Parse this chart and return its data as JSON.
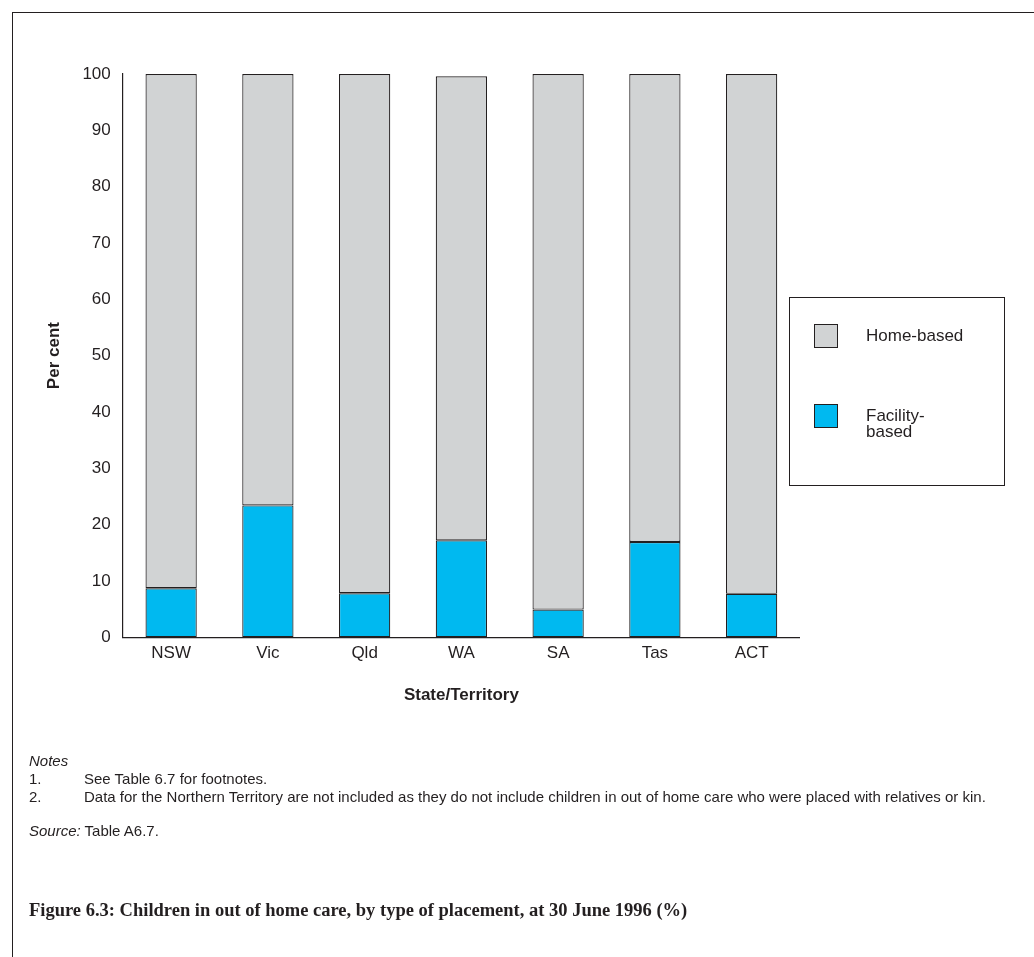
{
  "chart_data": {
    "type": "bar",
    "stacked": true,
    "title": "Figure 6.3: Children in out of home care, by type of placement, at 30 June 1996 (%)",
    "xlabel": "State/Territory",
    "ylabel": "Per cent",
    "categories": [
      "NSW",
      "Vic",
      "Qld",
      "WA",
      "SA",
      "Tas",
      "ACT"
    ],
    "series": [
      {
        "name": "Facility-based",
        "color": "#00b9f0",
        "values": [
          8.7,
          23.4,
          7.8,
          17.2,
          4.9,
          16.9,
          7.7
        ]
      },
      {
        "name": "Home-based",
        "color": "#d1d3d4",
        "values": [
          91.3,
          76.6,
          92.2,
          82.4,
          95.1,
          83.1,
          92.3
        ]
      }
    ],
    "ylim": [
      0,
      100
    ],
    "yticks": [
      0,
      10,
      20,
      30,
      40,
      50,
      60,
      70,
      80,
      90,
      100
    ],
    "grid": false,
    "legend": "right",
    "annotations": [
      "Notes",
      "1.",
      "See Table 6.7 for footnotes.",
      "2.",
      "Data for the Northern Territory are not included as they do not include children in out of home care who were placed with relatives or kin.",
      "Source:",
      "Table A6.7."
    ]
  }
}
